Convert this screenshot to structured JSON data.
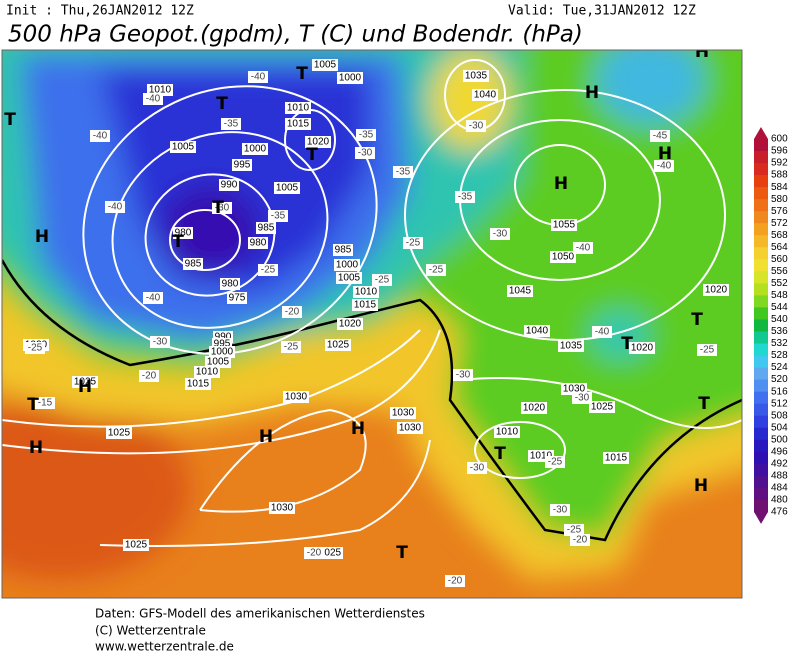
{
  "header": {
    "init": "Init : Thu,26JAN2012 12Z",
    "valid": "Valid: Tue,31JAN2012 12Z",
    "title": "500 hPa Geopot.(gpdm), T (C) und Bodendr. (hPa)"
  },
  "colorbar": {
    "ticks": [
      600,
      596,
      592,
      588,
      584,
      580,
      576,
      572,
      568,
      564,
      560,
      556,
      552,
      548,
      544,
      540,
      536,
      532,
      528,
      524,
      520,
      516,
      512,
      508,
      504,
      500,
      496,
      492,
      488,
      484,
      480,
      476
    ],
    "colors": [
      "#b0103a",
      "#c81e2a",
      "#d82a20",
      "#e64010",
      "#ec5a10",
      "#f07018",
      "#f08820",
      "#f4a020",
      "#f4b828",
      "#f4d030",
      "#f0e030",
      "#d8e428",
      "#b4e020",
      "#80d820",
      "#40c820",
      "#10b840",
      "#10c890",
      "#20d8d0",
      "#40c8f0",
      "#60a8f0",
      "#5090f0",
      "#4070f0",
      "#3858e8",
      "#3040e0",
      "#2828d0",
      "#2818c0",
      "#3010b0",
      "#4010a0",
      "#501090",
      "#601080",
      "#701070"
    ]
  },
  "map": {
    "isobar_labels": [
      "1010",
      "1005",
      "1000",
      "1010",
      "1015",
      "1020",
      "1005",
      "1000",
      "995",
      "990",
      "1005",
      "980",
      "985",
      "985",
      "980",
      "985",
      "1000",
      "1005",
      "1010",
      "1015",
      "1020",
      "1025",
      "980",
      "975",
      "990",
      "995",
      "1000",
      "1005",
      "1010",
      "1015",
      "1020",
      "1025",
      "1030",
      "1025",
      "1030",
      "1030",
      "1030",
      "1025",
      "1025",
      "1035",
      "1040",
      "1055",
      "1050",
      "1045",
      "1040",
      "1035",
      "1030",
      "1025",
      "1020",
      "1015",
      "1010",
      "1010",
      "1020",
      "1020"
    ],
    "temperature_labels": [
      "-40",
      "-40",
      "-35",
      "-40",
      "-35",
      "-30",
      "-40",
      "-30",
      "-35",
      "-25",
      "-40",
      "-20",
      "-25",
      "-25",
      "-30",
      "-20",
      "-15",
      "-30",
      "-35",
      "-35",
      "-30",
      "-40",
      "-25",
      "-25",
      "-30",
      "-30",
      "-45",
      "-40",
      "-40",
      "-25",
      "-30",
      "-25",
      "-30",
      "-25",
      "-20",
      "-20",
      "-20",
      "-25"
    ],
    "pressure_centers": [
      "T",
      "T",
      "T",
      "T",
      "H",
      "T",
      "T",
      "H",
      "H",
      "H",
      "H",
      "T",
      "H",
      "H",
      "H",
      "T",
      "T",
      "T",
      "T",
      "H",
      "T",
      "H"
    ]
  },
  "footer": {
    "source": "Daten: GFS-Modell des amerikanischen Wetterdienstes",
    "copyright": "(C) Wetterzentrale",
    "url": "www.wetterzentrale.de"
  }
}
